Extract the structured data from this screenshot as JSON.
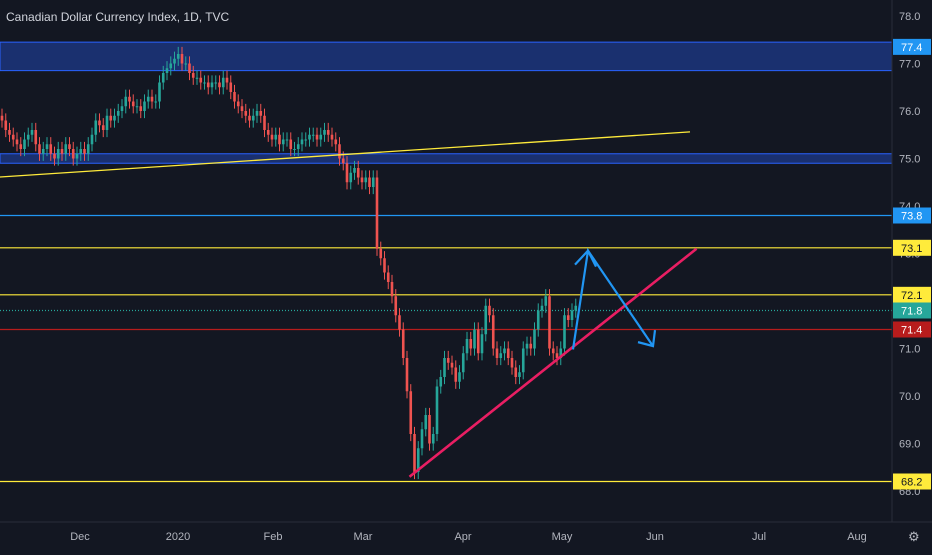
{
  "header": {
    "title": "Canadian Dollar Currency Index, 1D, TVC"
  },
  "colors": {
    "background": "#131722",
    "up": "#26a69a",
    "down": "#ef5350",
    "zone": "#1e3a8a",
    "yellow": "#ffeb3b",
    "blue_line": "#2196f3",
    "red_line": "#b71c1c",
    "trend_pink": "#e91e63",
    "arrow": "#2196f3",
    "axis_text": "#b2b5be"
  },
  "chart_data": {
    "type": "candlestick",
    "title": "Canadian Dollar Currency Index, 1D, TVC",
    "ylim": [
      67.5,
      78.5
    ],
    "y_ticks": [
      68.0,
      69.0,
      70.0,
      71.0,
      72.0,
      73.0,
      74.0,
      75.0,
      76.0,
      77.0,
      78.0
    ],
    "x_labels": [
      "Dec",
      "2020",
      "Feb",
      "Mar",
      "Apr",
      "May",
      "Jun",
      "Jul",
      "Aug"
    ],
    "grid": false,
    "price_tags": [
      {
        "label": "77.4",
        "value": 77.35,
        "color": "#2196f3"
      },
      {
        "label": "73.8",
        "value": 73.8,
        "color": "#2196f3"
      },
      {
        "label": "73.1",
        "value": 73.12,
        "color": "#ffeb3b"
      },
      {
        "label": "72.1",
        "value": 72.13,
        "color": "#ffeb3b"
      },
      {
        "label": "71.8",
        "value": 71.8,
        "color": "#26a69a"
      },
      {
        "label": "71.4",
        "value": 71.4,
        "color": "#b71c1c"
      },
      {
        "label": "68.2",
        "value": 68.2,
        "color": "#ffeb3b"
      }
    ],
    "zones": [
      {
        "from": 76.85,
        "to": 77.45
      },
      {
        "from": 74.9,
        "to": 75.1
      }
    ],
    "hlines": [
      {
        "value": 73.8,
        "color": "#2196f3"
      },
      {
        "value": 73.12,
        "color": "#ffeb3b"
      },
      {
        "value": 72.13,
        "color": "#ffeb3b"
      },
      {
        "value": 71.8,
        "color": "#26a69a",
        "dotted": true
      },
      {
        "value": 71.4,
        "color": "#b71c1c"
      },
      {
        "value": 68.2,
        "color": "#ffeb3b"
      }
    ],
    "candles_close": [
      75.8,
      75.6,
      75.5,
      75.4,
      75.3,
      75.2,
      75.4,
      75.5,
      75.6,
      75.3,
      75.1,
      75.2,
      75.3,
      75.1,
      75.0,
      75.2,
      75.1,
      75.3,
      75.2,
      75.0,
      75.1,
      75.2,
      75.1,
      75.3,
      75.5,
      75.8,
      75.7,
      75.6,
      75.9,
      75.8,
      75.9,
      76.0,
      76.1,
      76.3,
      76.2,
      76.1,
      76.1,
      76.0,
      76.2,
      76.3,
      76.2,
      76.2,
      76.6,
      76.8,
      76.9,
      77.0,
      77.1,
      77.2,
      77.0,
      77.0,
      76.8,
      76.7,
      76.7,
      76.6,
      76.6,
      76.5,
      76.6,
      76.6,
      76.5,
      76.7,
      76.6,
      76.4,
      76.2,
      76.1,
      76.0,
      75.9,
      75.8,
      75.9,
      76.0,
      75.9,
      75.6,
      75.5,
      75.4,
      75.5,
      75.3,
      75.4,
      75.4,
      75.2,
      75.2,
      75.3,
      75.4,
      75.4,
      75.5,
      75.5,
      75.4,
      75.5,
      75.6,
      75.5,
      75.4,
      75.3,
      75.0,
      74.9,
      74.5,
      74.7,
      74.8,
      74.6,
      74.5,
      74.6,
      74.4,
      74.6,
      73.1,
      72.9,
      72.6,
      72.4,
      72.1,
      71.7,
      71.4,
      70.8,
      70.1,
      69.2,
      68.4,
      68.9,
      69.3,
      69.6,
      69.0,
      69.2,
      70.2,
      70.4,
      70.8,
      70.7,
      70.6,
      70.3,
      70.5,
      70.9,
      71.2,
      71.0,
      71.4,
      70.9,
      71.3,
      71.9,
      71.7,
      71.0,
      70.8,
      70.9,
      71.0,
      70.8,
      70.6,
      70.4,
      70.5,
      71.0,
      71.1,
      71.0,
      71.4,
      71.8,
      71.9,
      72.1,
      71.0,
      70.9,
      70.8,
      71.0,
      71.7,
      71.6,
      71.8,
      71.9
    ]
  },
  "drawings": {
    "resistance_line": [
      [
        0.0,
        74.61
      ],
      [
        69.0,
        75.56
      ]
    ],
    "support_line": [
      [
        10.5,
        68.3
      ],
      [
        70.0,
        73.1
      ]
    ],
    "arrow_up": [
      [
        57.3,
        70.98
      ],
      [
        58.8,
        73.06
      ]
    ],
    "arrow_down": [
      [
        58.8,
        73.06
      ],
      [
        65.3,
        71.05
      ]
    ]
  }
}
